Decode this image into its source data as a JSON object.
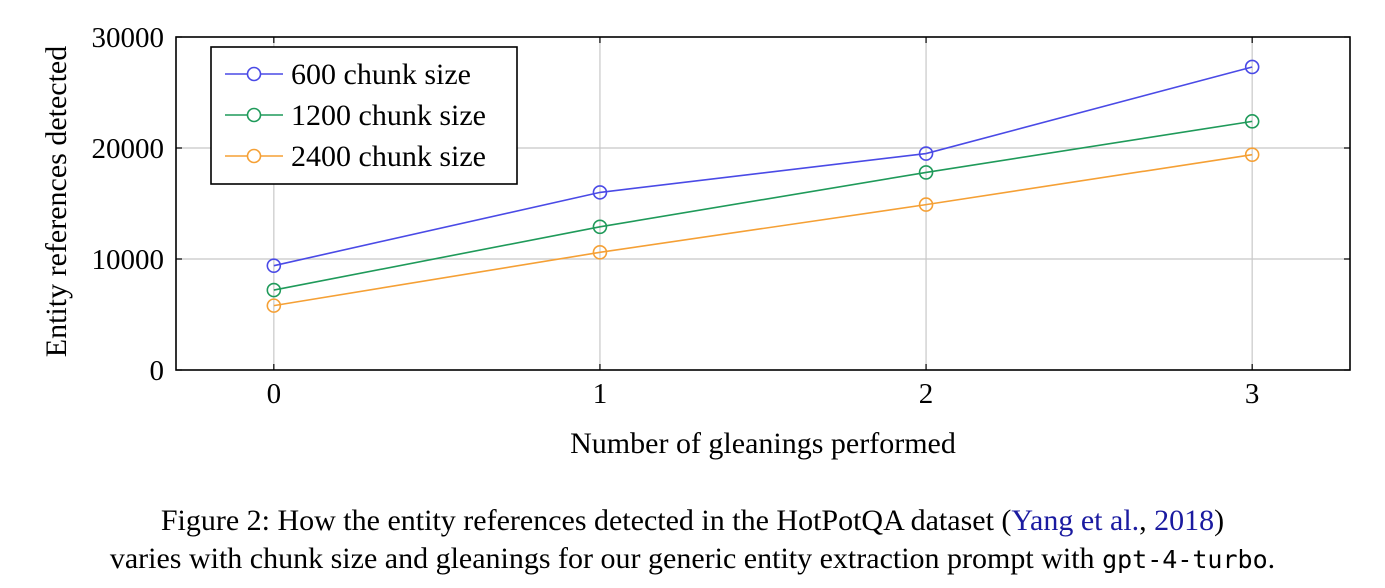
{
  "chart_data": {
    "type": "line",
    "x": [
      0,
      1,
      2,
      3
    ],
    "xlabel": "Number of gleanings performed",
    "ylabel": "Entity references detected",
    "xlim": [
      -0.3,
      3.3
    ],
    "ylim": [
      0,
      30000
    ],
    "xticks": [
      "0",
      "1",
      "2",
      "3"
    ],
    "yticks": [
      "0",
      "10000",
      "20000",
      "30000"
    ],
    "grid": true,
    "legend_position": "top-left",
    "marker": "open-circle",
    "series": [
      {
        "name": "600 chunk size",
        "color": "#4a4ae6",
        "values": [
          9400,
          16000,
          19500,
          27300
        ]
      },
      {
        "name": "1200 chunk size",
        "color": "#1f9a5a",
        "values": [
          7200,
          12900,
          17800,
          22400
        ]
      },
      {
        "name": "2400 chunk size",
        "color": "#f5a035",
        "values": [
          5800,
          10600,
          14900,
          19400
        ]
      }
    ]
  },
  "caption": {
    "line1_before": "Figure 2: How the entity references detected in the HotPotQA dataset (",
    "cite_authors": "Yang et al.",
    "cite_sep": ", ",
    "cite_year": "2018",
    "line1_after": ")",
    "line2_before": "varies with chunk size and gleanings for our generic entity extraction prompt with ",
    "line2_code": "gpt-4-turbo",
    "line2_after": "."
  }
}
